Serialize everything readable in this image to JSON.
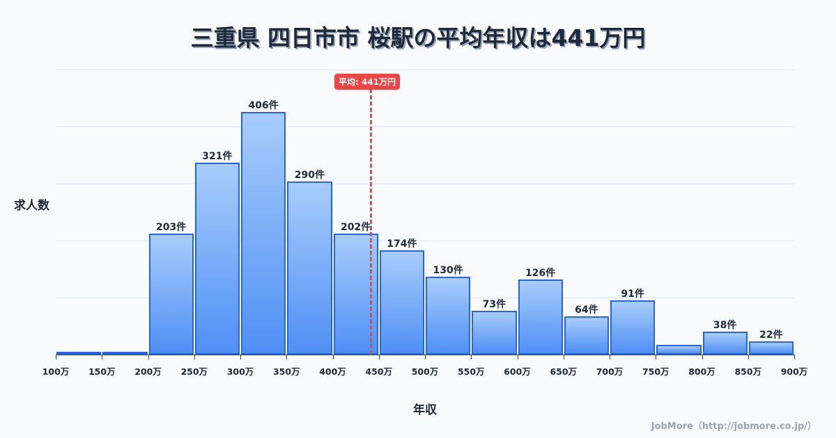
{
  "title": "三重県 四日市市 桜駅の平均年収は441万円",
  "average_badge": "平均: 441万円",
  "y_axis_label": "求人数",
  "x_axis_label": "年収",
  "footer": "JobMore（http://jobmore.co.jp/）",
  "colors": {
    "bar_top": "#a8cdfb",
    "bar_bottom": "#4f8ff5",
    "bar_border": "#2563eb",
    "average_line": "#ef4444",
    "title_text": "#1e293b",
    "background": "#f8fafc"
  },
  "chart_data": {
    "type": "bar",
    "title": "三重県 四日市市 桜駅の平均年収は441万円",
    "xlabel": "年収",
    "ylabel": "求人数",
    "categories": [
      "100-150万",
      "150-200万",
      "200-250万",
      "250-300万",
      "300-350万",
      "350-400万",
      "400-450万",
      "450-500万",
      "500-550万",
      "550-600万",
      "600-650万",
      "650-700万",
      "700-750万",
      "750-800万",
      "800-850万",
      "850-900万"
    ],
    "values": [
      2,
      5,
      203,
      321,
      406,
      290,
      202,
      174,
      130,
      73,
      126,
      64,
      91,
      16,
      38,
      22
    ],
    "data_labels": [
      "",
      "",
      "203件",
      "321件",
      "406件",
      "290件",
      "202件",
      "174件",
      "130件",
      "73件",
      "126件",
      "64件",
      "91件",
      "",
      "38件",
      "22件"
    ],
    "x_tick_labels": [
      "100万",
      "150万",
      "200万",
      "250万",
      "300万",
      "350万",
      "400万",
      "450万",
      "500万",
      "550万",
      "600万",
      "650万",
      "700万",
      "750万",
      "800万",
      "850万",
      "900万"
    ],
    "ylim": [
      0,
      477
    ],
    "grid": true,
    "annotations": [
      {
        "type": "vline",
        "x": 441,
        "label": "平均: 441万円",
        "style": "dashed",
        "color": "#ef4444"
      }
    ]
  }
}
